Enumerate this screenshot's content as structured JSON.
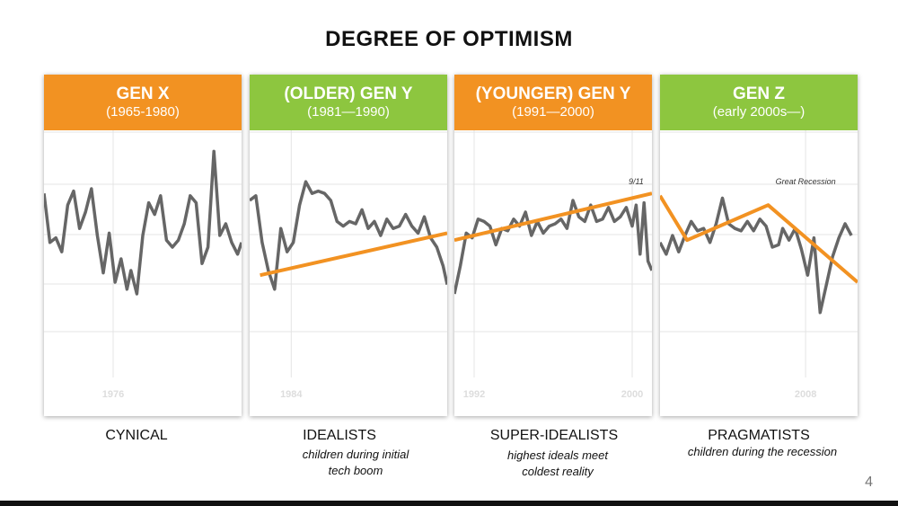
{
  "title": "DEGREE OF OPTIMISM",
  "page_number": "4",
  "colors": {
    "orange": "#f29222",
    "green": "#8dc63f",
    "line": "#666666",
    "trend": "#f29222",
    "grid": "#e4e4e4"
  },
  "panels": [
    {
      "name": "GEN X",
      "years": "(1965-1980)",
      "color": "orange",
      "label": "CYNICAL",
      "sub": []
    },
    {
      "name": "(OLDER) GEN Y",
      "years": "(1981—1990)",
      "color": "green",
      "label": "IDEALISTS",
      "sub": [
        "children during initial",
        "tech boom"
      ]
    },
    {
      "name": "(YOUNGER) GEN Y",
      "years": "(1991—2000)",
      "color": "orange",
      "label": "SUPER-IDEALISTS",
      "sub": [
        "highest ideals meet",
        "coldest reality"
      ]
    },
    {
      "name": "GEN Z",
      "years": "(early 2000s—)",
      "color": "green",
      "label": "PRAGMATISTS",
      "sub": [
        "children during the recession"
      ]
    }
  ],
  "chart_data": [
    {
      "type": "line",
      "title": "GEN X",
      "xlim": [
        1972.5,
        1982.5
      ],
      "ylim": [
        0,
        100
      ],
      "x_ticks": [
        1976
      ],
      "grid": true,
      "series": [
        {
          "values": [
            [
              1972.5,
              73
            ],
            [
              1972.8,
              52
            ],
            [
              1973.1,
              54
            ],
            [
              1973.4,
              48
            ],
            [
              1973.7,
              68
            ],
            [
              1974.0,
              74
            ],
            [
              1974.3,
              58
            ],
            [
              1974.6,
              65
            ],
            [
              1974.9,
              75
            ],
            [
              1975.2,
              55
            ],
            [
              1975.5,
              39
            ],
            [
              1975.8,
              56
            ],
            [
              1976.1,
              35
            ],
            [
              1976.4,
              45
            ],
            [
              1976.7,
              32
            ],
            [
              1976.9,
              40
            ],
            [
              1977.2,
              30
            ],
            [
              1977.5,
              55
            ],
            [
              1977.8,
              69
            ],
            [
              1978.1,
              64
            ],
            [
              1978.4,
              72
            ],
            [
              1978.7,
              53
            ],
            [
              1979.0,
              50
            ],
            [
              1979.3,
              53
            ],
            [
              1979.6,
              60
            ],
            [
              1979.9,
              72
            ],
            [
              1980.2,
              69
            ],
            [
              1980.5,
              43
            ],
            [
              1980.8,
              50
            ],
            [
              1981.1,
              91
            ],
            [
              1981.4,
              55
            ],
            [
              1981.7,
              60
            ],
            [
              1982.0,
              52
            ],
            [
              1982.3,
              47
            ],
            [
              1982.5,
              52
            ]
          ]
        }
      ],
      "trend": []
    },
    {
      "type": "line",
      "title": "(OLDER) GEN Y",
      "xlim": [
        1982.0,
        1991.5
      ],
      "ylim": [
        0,
        100
      ],
      "x_ticks": [
        1984
      ],
      "grid": true,
      "series": [
        {
          "values": [
            [
              1982.0,
              70
            ],
            [
              1982.3,
              72
            ],
            [
              1982.6,
              52
            ],
            [
              1982.9,
              40
            ],
            [
              1983.2,
              32
            ],
            [
              1983.5,
              58
            ],
            [
              1983.8,
              48
            ],
            [
              1984.1,
              52
            ],
            [
              1984.4,
              68
            ],
            [
              1984.7,
              78
            ],
            [
              1985.0,
              73
            ],
            [
              1985.3,
              74
            ],
            [
              1985.6,
              73
            ],
            [
              1985.9,
              70
            ],
            [
              1986.2,
              61
            ],
            [
              1986.5,
              59
            ],
            [
              1986.8,
              61
            ],
            [
              1987.1,
              60
            ],
            [
              1987.4,
              66
            ],
            [
              1987.7,
              58
            ],
            [
              1988.0,
              61
            ],
            [
              1988.3,
              55
            ],
            [
              1988.6,
              62
            ],
            [
              1988.9,
              58
            ],
            [
              1989.2,
              59
            ],
            [
              1989.5,
              64
            ],
            [
              1989.8,
              59
            ],
            [
              1990.1,
              56
            ],
            [
              1990.4,
              63
            ],
            [
              1990.7,
              54
            ],
            [
              1991.0,
              50
            ],
            [
              1991.3,
              42
            ],
            [
              1991.5,
              34
            ]
          ]
        }
      ],
      "trend": [
        [
          1982.5,
          38
        ],
        [
          1991.5,
          56
        ]
      ]
    },
    {
      "type": "line",
      "title": "(YOUNGER) GEN Y",
      "xlim": [
        1991.0,
        2001.0
      ],
      "ylim": [
        0,
        100
      ],
      "x_ticks": [
        1992,
        2000
      ],
      "grid": true,
      "series": [
        {
          "values": [
            [
              1991.0,
              30
            ],
            [
              1991.3,
              42
            ],
            [
              1991.6,
              56
            ],
            [
              1991.9,
              54
            ],
            [
              1992.2,
              62
            ],
            [
              1992.5,
              61
            ],
            [
              1992.8,
              59
            ],
            [
              1993.1,
              51
            ],
            [
              1993.4,
              58
            ],
            [
              1993.7,
              57
            ],
            [
              1994.0,
              62
            ],
            [
              1994.3,
              59
            ],
            [
              1994.6,
              65
            ],
            [
              1994.9,
              55
            ],
            [
              1995.2,
              61
            ],
            [
              1995.5,
              56
            ],
            [
              1995.8,
              59
            ],
            [
              1996.1,
              60
            ],
            [
              1996.4,
              62
            ],
            [
              1996.7,
              58
            ],
            [
              1997.0,
              70
            ],
            [
              1997.3,
              63
            ],
            [
              1997.6,
              61
            ],
            [
              1997.9,
              68
            ],
            [
              1998.2,
              61
            ],
            [
              1998.5,
              62
            ],
            [
              1998.8,
              67
            ],
            [
              1999.1,
              61
            ],
            [
              1999.4,
              63
            ],
            [
              1999.7,
              67
            ],
            [
              2000.0,
              59
            ],
            [
              2000.2,
              68
            ],
            [
              2000.4,
              47
            ],
            [
              2000.6,
              69
            ],
            [
              2000.8,
              44
            ],
            [
              2001.0,
              40
            ]
          ]
        }
      ],
      "trend": [
        [
          1991.0,
          53
        ],
        [
          2001.0,
          73
        ]
      ],
      "annotation": {
        "text": "9/11",
        "x": 2000.2,
        "y": 77
      }
    },
    {
      "type": "line",
      "title": "GEN Z",
      "xlim": [
        2001.0,
        2010.5
      ],
      "ylim": [
        0,
        100
      ],
      "x_ticks": [
        2008
      ],
      "grid": true,
      "series": [
        {
          "values": [
            [
              2001.0,
              52
            ],
            [
              2001.3,
              47
            ],
            [
              2001.6,
              55
            ],
            [
              2001.9,
              48
            ],
            [
              2002.2,
              55
            ],
            [
              2002.5,
              61
            ],
            [
              2002.8,
              57
            ],
            [
              2003.1,
              58
            ],
            [
              2003.4,
              52
            ],
            [
              2003.7,
              60
            ],
            [
              2004.0,
              71
            ],
            [
              2004.3,
              60
            ],
            [
              2004.6,
              58
            ],
            [
              2004.9,
              57
            ],
            [
              2005.2,
              61
            ],
            [
              2005.5,
              57
            ],
            [
              2005.8,
              62
            ],
            [
              2006.1,
              59
            ],
            [
              2006.4,
              50
            ],
            [
              2006.7,
              51
            ],
            [
              2006.9,
              58
            ],
            [
              2007.2,
              53
            ],
            [
              2007.5,
              58
            ],
            [
              2007.8,
              49
            ],
            [
              2008.1,
              38
            ],
            [
              2008.4,
              54
            ],
            [
              2008.7,
              22
            ],
            [
              2009.0,
              34
            ],
            [
              2009.3,
              46
            ],
            [
              2009.6,
              54
            ],
            [
              2009.9,
              60
            ],
            [
              2010.2,
              55
            ]
          ]
        }
      ],
      "trend": [
        [
          2001.0,
          72
        ],
        [
          2002.3,
          53
        ],
        [
          2006.2,
          68
        ],
        [
          2010.5,
          35
        ]
      ],
      "annotation": {
        "text": "Great Recession",
        "x": 2008.0,
        "y": 77
      }
    }
  ]
}
